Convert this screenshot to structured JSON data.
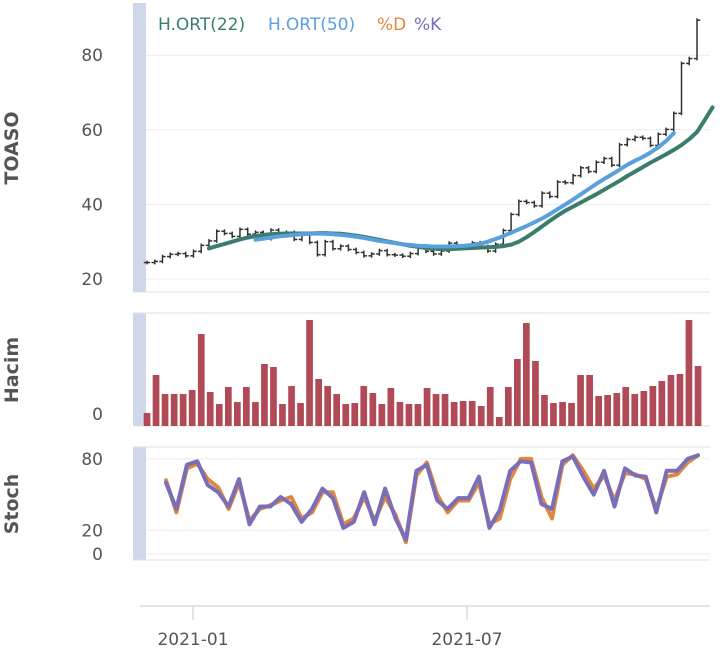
{
  "chart_data": {
    "type": "line",
    "ticker": "TOASO",
    "legend": [
      {
        "label": "H.ORT(22)",
        "color": "#3a7d6e"
      },
      {
        "label": "H.ORT(50)",
        "color": "#5aa0dc"
      },
      {
        "label": "%D",
        "color": "#e0883c"
      },
      {
        "label": "%K",
        "color": "#7a6eb8"
      }
    ],
    "x_ticks": [
      "2021-01",
      "2021-07"
    ],
    "panels": {
      "price": {
        "ylabel": "TOASO",
        "yticks": [
          20,
          40,
          60,
          80
        ],
        "ylim": [
          16.5,
          94
        ],
        "bar_color": "#333333",
        "close": [
          24.4,
          24.7,
          26.0,
          26.6,
          26.8,
          26.2,
          27.4,
          29.0,
          30.2,
          32.8,
          32.2,
          31.4,
          33.3,
          32.0,
          32.5,
          30.8,
          33.1,
          32.0,
          32.5,
          30.6,
          32.0,
          29.8,
          26.5,
          30.0,
          28.1,
          28.8,
          27.9,
          27.1,
          26.2,
          26.7,
          27.6,
          26.5,
          26.4,
          26.1,
          26.8,
          28.8,
          27.4,
          26.7,
          27.5,
          29.6,
          28.8,
          28.6,
          29.7,
          28.7,
          27.5,
          29.3,
          33.0,
          37.3,
          40.8,
          40.5,
          39.6,
          43.0,
          42.1,
          46.0,
          45.8,
          47.7,
          49.8,
          48.8,
          51.3,
          52.3,
          50.5,
          56.0,
          57.4,
          58.0,
          57.7,
          55.8,
          58.8,
          60.1,
          64.4,
          77.8,
          79.1,
          89.4
        ],
        "series": [
          {
            "name": "H.ORT(22)",
            "start": 8,
            "values": [
              28.2,
              28.8,
              29.4,
              30.0,
              30.6,
              31.1,
              31.5,
              31.8,
              32.0,
              32.1,
              32.2,
              32.2,
              32.2,
              32.2,
              32.3,
              32.3,
              32.2,
              32.1,
              31.9,
              31.6,
              31.3,
              30.9,
              30.5,
              30.1,
              29.7,
              29.3,
              28.9,
              28.6,
              28.3,
              28.1,
              28.0,
              28.0,
              28.1,
              28.2,
              28.3,
              28.4,
              28.5,
              28.6,
              28.8,
              29.2,
              30.0,
              31.2,
              32.6,
              34.1,
              35.6,
              37.0,
              38.3,
              39.4,
              40.5,
              41.6,
              42.7,
              43.9,
              45.1,
              46.3,
              47.6,
              48.8,
              50.0,
              51.2,
              52.3,
              53.4,
              54.6,
              55.9,
              57.5,
              59.4,
              62.6,
              66.0
            ]
          },
          {
            "name": "H.ORT(50)",
            "start": 14,
            "values": [
              30.5,
              30.8,
              31.1,
              31.4,
              31.6,
              31.8,
              32.0,
              32.1,
              32.2,
              32.1,
              32.0,
              31.8,
              31.6,
              31.3,
              31.0,
              30.6,
              30.2,
              29.9,
              29.6,
              29.3,
              29.1,
              28.9,
              28.8,
              28.7,
              28.7,
              28.7,
              28.8,
              28.9,
              29.1,
              29.4,
              30.0,
              30.7,
              31.5,
              32.4,
              33.3,
              34.2,
              35.2,
              36.2,
              37.4,
              38.7,
              40.0,
              41.3,
              42.7,
              44.1,
              45.5,
              46.8,
              48.0,
              49.3,
              50.6,
              51.7,
              52.7,
              53.9,
              55.3,
              57.0,
              59.1
            ]
          }
        ]
      },
      "volume": {
        "ylabel": "Hacim",
        "yticks": [
          0
        ],
        "bar_color": "#b04a56",
        "values": [
          0.65,
          2.55,
          1.6,
          1.6,
          1.6,
          1.8,
          4.6,
          1.7,
          1.1,
          1.95,
          1.2,
          1.95,
          1.2,
          3.1,
          2.95,
          1.1,
          2.0,
          1.15,
          5.3,
          2.35,
          2.0,
          1.6,
          1.1,
          1.15,
          2.0,
          1.65,
          1.1,
          1.9,
          1.2,
          1.1,
          1.1,
          1.9,
          1.6,
          1.6,
          1.2,
          1.25,
          1.25,
          1.0,
          1.95,
          0.45,
          1.95,
          3.35,
          5.15,
          3.25,
          1.55,
          1.15,
          1.2,
          1.15,
          2.55,
          2.55,
          1.5,
          1.55,
          1.65,
          1.95,
          1.6,
          1.75,
          2.0,
          2.25,
          2.55,
          2.6,
          5.3,
          3.0
        ],
        "ylim": [
          0,
          5.3
        ]
      },
      "stoch": {
        "ylabel": "Stoch",
        "yticks": [
          0,
          20,
          80
        ],
        "ylim": [
          -5,
          90
        ],
        "k": [
          60,
          38,
          75,
          78,
          58,
          52,
          40,
          63,
          25,
          40,
          40,
          48,
          42,
          27,
          38,
          55,
          47,
          22,
          27,
          52,
          25,
          55,
          30,
          12,
          70,
          75,
          45,
          38,
          47,
          47,
          65,
          22,
          37,
          70,
          78,
          77,
          42,
          38,
          78,
          82,
          65,
          50,
          70,
          40,
          72,
          66,
          65,
          35,
          70,
          70,
          80,
          83
        ],
        "d": [
          62,
          35,
          72,
          76,
          63,
          56,
          38,
          60,
          28,
          38,
          41,
          45,
          48,
          30,
          35,
          52,
          52,
          25,
          30,
          48,
          28,
          48,
          33,
          10,
          66,
          77,
          50,
          35,
          45,
          45,
          60,
          25,
          30,
          63,
          80,
          80,
          48,
          30,
          75,
          83,
          70,
          55,
          66,
          45,
          68,
          67,
          63,
          38,
          65,
          67,
          77,
          83
        ]
      }
    }
  }
}
